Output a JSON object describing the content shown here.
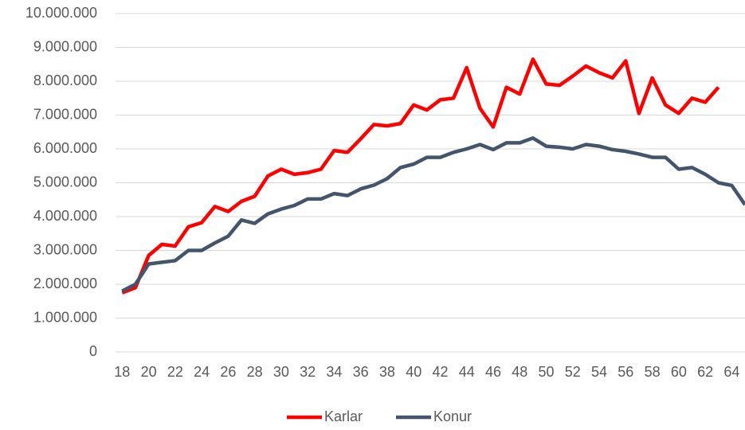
{
  "chart_data": {
    "type": "line",
    "x": [
      18,
      19,
      20,
      21,
      22,
      23,
      24,
      25,
      26,
      27,
      28,
      29,
      30,
      31,
      32,
      33,
      34,
      35,
      36,
      37,
      38,
      39,
      40,
      41,
      42,
      43,
      44,
      45,
      46,
      47,
      48,
      49,
      50,
      51,
      52,
      53,
      54,
      55,
      56,
      57,
      58,
      59,
      60,
      61,
      62,
      63,
      64,
      65
    ],
    "series": [
      {
        "name": "Karlar",
        "color": "#ff0000",
        "values": [
          1750000,
          1900000,
          2850000,
          3180000,
          3130000,
          3700000,
          3820000,
          4300000,
          4150000,
          4450000,
          4600000,
          5200000,
          5400000,
          5250000,
          5300000,
          5400000,
          5950000,
          5900000,
          6300000,
          6720000,
          6680000,
          6750000,
          7300000,
          7150000,
          7450000,
          7500000,
          8400000,
          7200000,
          6650000,
          7820000,
          7620000,
          8650000,
          7920000,
          7880000,
          8150000,
          8450000,
          8250000,
          8100000,
          8600000,
          7050000,
          8100000,
          7300000,
          7050000,
          7500000,
          7380000,
          7820000,
          null,
          null
        ]
      },
      {
        "name": "Konur",
        "color": "#44546a",
        "values": [
          1800000,
          2000000,
          2600000,
          2650000,
          2700000,
          3000000,
          3000000,
          3220000,
          3420000,
          3900000,
          3800000,
          4080000,
          4220000,
          4330000,
          4520000,
          4520000,
          4680000,
          4620000,
          4820000,
          4930000,
          5120000,
          5450000,
          5550000,
          5750000,
          5750000,
          5900000,
          6000000,
          6130000,
          5980000,
          6180000,
          6180000,
          6320000,
          6080000,
          6050000,
          6000000,
          6130000,
          6080000,
          5980000,
          5930000,
          5850000,
          5750000,
          5750000,
          5400000,
          5450000,
          5250000,
          5000000,
          4920000,
          4350000
        ]
      }
    ],
    "xlim": [
      17.5,
      65
    ],
    "xticks": [
      18,
      20,
      22,
      24,
      26,
      28,
      30,
      32,
      34,
      36,
      38,
      40,
      42,
      44,
      46,
      48,
      50,
      52,
      54,
      56,
      58,
      60,
      62,
      64
    ],
    "ylim": [
      0,
      10000000
    ],
    "yticks": [
      0,
      {
        "value": 1000000,
        "label": "1.000.000"
      },
      {
        "value": 2000000,
        "label": "2.000.000"
      },
      {
        "value": 3000000,
        "label": "3.000.000"
      },
      {
        "value": 4000000,
        "label": "4.000.000"
      },
      {
        "value": 5000000,
        "label": "5.000.000"
      },
      {
        "value": 6000000,
        "label": "6.000.000"
      },
      {
        "value": 7000000,
        "label": "7.000.000"
      },
      {
        "value": 8000000,
        "label": "8.000.000"
      },
      {
        "value": 9000000,
        "label": "9.000.000"
      },
      {
        "value": 10000000,
        "label": "10.000.000"
      }
    ],
    "grid": true,
    "legend": "bottom"
  }
}
